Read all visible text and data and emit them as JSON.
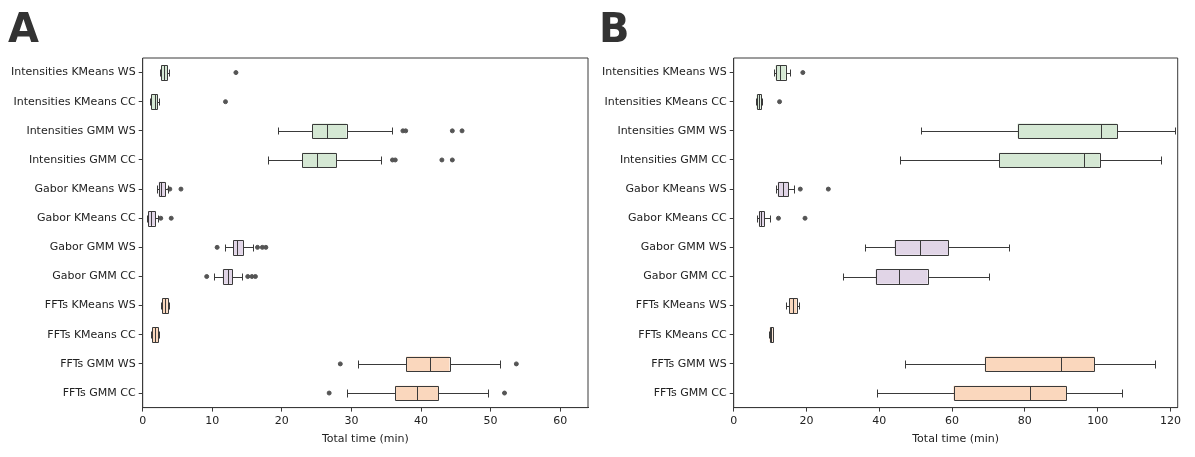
{
  "chart_data": [
    {
      "type": "box",
      "title": "A",
      "xlabel": "Total time (min)",
      "orientation": "horizontal",
      "grid": false,
      "categories": [
        "Intensities KMeans WS",
        "Intensities KMeans CC",
        "Intensities GMM WS",
        "Intensities GMM CC",
        "Gabor KMeans WS",
        "Gabor KMeans CC",
        "Gabor GMM WS",
        "Gabor GMM CC",
        "FFTs KMeans WS",
        "FFTs KMeans CC",
        "FFTs GMM WS",
        "FFTs GMM CC"
      ],
      "colors": [
        "#d5e8d4",
        "#d5e8d4",
        "#d5e8d4",
        "#d5e8d4",
        "#e1d5e7",
        "#e1d5e7",
        "#e1d5e7",
        "#e1d5e7",
        "#fad7bd",
        "#fad7bd",
        "#fad7bd",
        "#fad7bd"
      ],
      "boxes": [
        {
          "low": 2.5,
          "q1": 2.7,
          "median": 3.1,
          "q3": 3.5,
          "high": 3.8,
          "outliers": [
            13.4
          ]
        },
        {
          "low": 1.0,
          "q1": 1.2,
          "median": 1.7,
          "q3": 2.1,
          "high": 2.3,
          "outliers": [
            11.9
          ]
        },
        {
          "low": 19.5,
          "q1": 24.4,
          "median": 26.5,
          "q3": 29.3,
          "high": 35.8,
          "outliers": [
            37.4,
            37.8,
            44.5,
            45.9
          ]
        },
        {
          "low": 18.0,
          "q1": 22.9,
          "median": 25.0,
          "q3": 27.8,
          "high": 34.3,
          "outliers": [
            35.9,
            36.3,
            43.0,
            44.5
          ]
        },
        {
          "low": 2.0,
          "q1": 2.3,
          "median": 2.7,
          "q3": 3.2,
          "high": 3.6,
          "outliers": [
            3.9,
            5.5
          ]
        },
        {
          "low": 0.6,
          "q1": 0.8,
          "median": 1.2,
          "q3": 1.8,
          "high": 2.2,
          "outliers": [
            2.6,
            4.1
          ]
        },
        {
          "low": 11.8,
          "q1": 13.0,
          "median": 13.6,
          "q3": 14.4,
          "high": 15.8,
          "outliers": [
            10.7,
            16.5,
            17.2,
            17.7
          ]
        },
        {
          "low": 10.2,
          "q1": 11.5,
          "median": 12.2,
          "q3": 12.9,
          "high": 14.3,
          "outliers": [
            9.2,
            15.1,
            15.7,
            16.2
          ]
        },
        {
          "low": 2.6,
          "q1": 2.8,
          "median": 3.2,
          "q3": 3.6,
          "high": 3.8
        },
        {
          "low": 1.2,
          "q1": 1.4,
          "median": 1.8,
          "q3": 2.2,
          "high": 2.4
        },
        {
          "low": 31.0,
          "q1": 37.9,
          "median": 41.3,
          "q3": 44.1,
          "high": 51.3,
          "outliers": [
            28.4,
            53.7
          ]
        },
        {
          "low": 29.3,
          "q1": 36.3,
          "median": 39.4,
          "q3": 42.5,
          "high": 49.6,
          "outliers": [
            26.8,
            52.0
          ]
        }
      ],
      "xlim": [
        0,
        64
      ],
      "xticks": [
        0,
        10,
        20,
        30,
        40,
        50,
        60
      ]
    },
    {
      "type": "box",
      "title": "B",
      "xlabel": "Total time (min)",
      "orientation": "horizontal",
      "grid": false,
      "categories": [
        "Intensities KMeans WS",
        "Intensities KMeans CC",
        "Intensities GMM WS",
        "Intensities GMM CC",
        "Gabor KMeans WS",
        "Gabor KMeans CC",
        "Gabor GMM WS",
        "Gabor GMM CC",
        "FFTs KMeans WS",
        "FFTs KMeans CC",
        "FFTs GMM WS",
        "FFTs GMM CC"
      ],
      "colors": [
        "#d5e8d4",
        "#d5e8d4",
        "#d5e8d4",
        "#d5e8d4",
        "#e1d5e7",
        "#e1d5e7",
        "#e1d5e7",
        "#e1d5e7",
        "#fad7bd",
        "#fad7bd",
        "#fad7bd",
        "#fad7bd"
      ],
      "boxes": [
        {
          "low": 11.0,
          "q1": 11.5,
          "median": 12.6,
          "q3": 14.3,
          "high": 15.4,
          "outliers": [
            19.0
          ]
        },
        {
          "low": 6.0,
          "q1": 6.3,
          "median": 6.9,
          "q3": 7.4,
          "high": 7.8,
          "outliers": [
            12.6
          ]
        },
        {
          "low": 51.6,
          "q1": 78.0,
          "median": 100.8,
          "q3": 105.3,
          "high": 121.2
        },
        {
          "low": 45.8,
          "q1": 72.9,
          "median": 96.2,
          "q3": 100.6,
          "high": 117.4
        },
        {
          "low": 11.5,
          "q1": 12.1,
          "median": 13.5,
          "q3": 15.0,
          "high": 16.5,
          "outliers": [
            18.3,
            26.0
          ]
        },
        {
          "low": 6.5,
          "q1": 6.9,
          "median": 7.6,
          "q3": 8.4,
          "high": 9.9,
          "outliers": [
            12.3,
            19.6
          ]
        },
        {
          "low": 36.0,
          "q1": 44.2,
          "median": 51.3,
          "q3": 59.0,
          "high": 75.6
        },
        {
          "low": 30.0,
          "q1": 39.0,
          "median": 45.4,
          "q3": 53.3,
          "high": 70.1
        },
        {
          "low": 14.5,
          "q1": 15.2,
          "median": 16.4,
          "q3": 17.3,
          "high": 18.0
        },
        {
          "low": 9.7,
          "q1": 9.9,
          "median": 10.3,
          "q3": 10.7,
          "high": 10.9
        },
        {
          "low": 47.2,
          "q1": 69.0,
          "median": 89.8,
          "q3": 99.1,
          "high": 115.7
        },
        {
          "low": 39.3,
          "q1": 60.4,
          "median": 81.3,
          "q3": 91.4,
          "high": 106.6
        }
      ],
      "xlim": [
        0,
        122
      ],
      "xticks": [
        0,
        20,
        40,
        60,
        80,
        100,
        120
      ]
    }
  ]
}
